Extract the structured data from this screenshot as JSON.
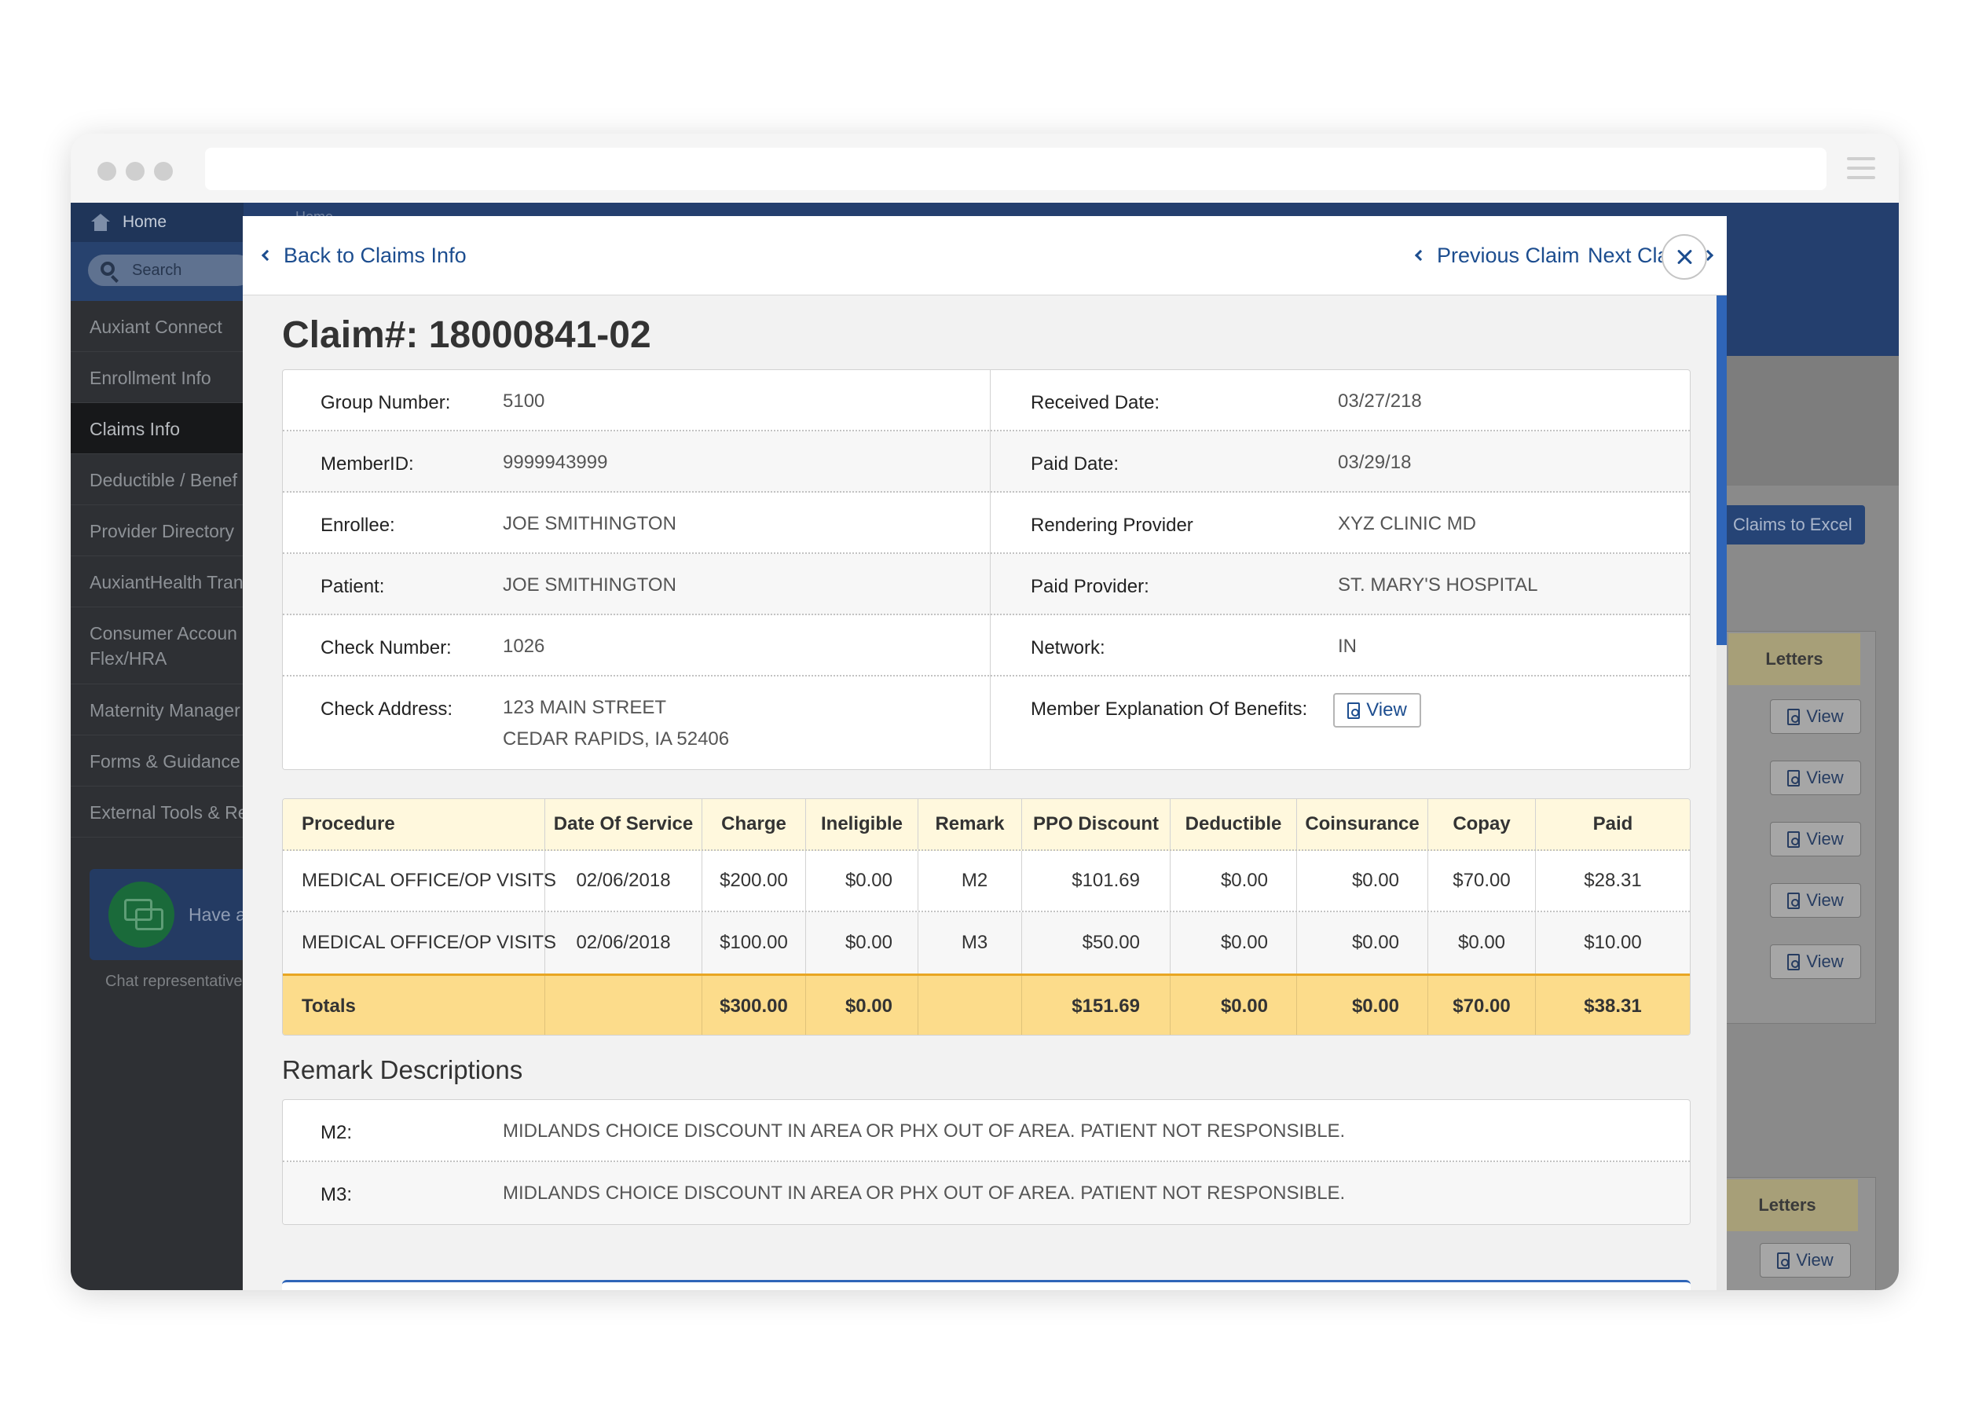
{
  "sidebar": {
    "home": "Home",
    "search_placeholder": "Search",
    "items": [
      {
        "label": "Auxiant Connect"
      },
      {
        "label": "Enrollment Info"
      },
      {
        "label": "Claims Info"
      },
      {
        "label": "Deductible / Benef"
      },
      {
        "label": "Provider Directory"
      },
      {
        "label": "AuxiantHealth Tran"
      },
      {
        "label": "Consumer Accoun"
      },
      {
        "label": "Maternity Manager"
      },
      {
        "label": "Forms & Guidance"
      },
      {
        "label": "External Tools & Re"
      }
    ],
    "consumer_sub": "Flex/HRA",
    "chat_title": "Have a",
    "chat_sub": "Chat representatives"
  },
  "background": {
    "breadcrumb": "Home",
    "export_button": "Claims to Excel",
    "letters_header": "Letters",
    "view_label": "View"
  },
  "modal": {
    "back_link": "Back to Claims Info",
    "previous_link": "Previous Claim",
    "next_link": "Next Claim",
    "claim_title": "Claim#: 18000841-02",
    "info": {
      "group_number_label": "Group Number:",
      "group_number": "5100",
      "member_id_label": "MemberID:",
      "member_id": "9999943999",
      "enrollee_label": "Enrollee:",
      "enrollee": "JOE SMITHINGTON",
      "patient_label": "Patient:",
      "patient": "JOE SMITHINGTON",
      "check_number_label": "Check Number:",
      "check_number": "1026",
      "check_address_label": "Check Address:",
      "check_address_line1": "123 MAIN STREET",
      "check_address_line2": "CEDAR RAPIDS, IA 52406",
      "received_date_label": "Received Date:",
      "received_date": "03/27/218",
      "paid_date_label": "Paid Date:",
      "paid_date": "03/29/18",
      "rendering_provider_label": "Rendering Provider",
      "rendering_provider": "XYZ CLINIC MD",
      "paid_provider_label": "Paid Provider:",
      "paid_provider": "ST. MARY'S HOSPITAL",
      "network_label": "Network:",
      "network": "IN",
      "eob_label": "Member Explanation Of Benefits:",
      "eob_button": "View"
    },
    "procedures": {
      "headers": [
        "Procedure",
        "Date Of Service",
        "Charge",
        "Ineligible",
        "Remark",
        "PPO Discount",
        "Deductible",
        "Coinsurance",
        "Copay",
        "Paid"
      ],
      "rows": [
        [
          "MEDICAL OFFICE/OP VISITS",
          "02/06/2018",
          "$200.00",
          "$0.00",
          "M2",
          "$101.69",
          "$0.00",
          "$0.00",
          "$70.00",
          "$28.31"
        ],
        [
          "MEDICAL OFFICE/OP VISITS",
          "02/06/2018",
          "$100.00",
          "$0.00",
          "M3",
          "$50.00",
          "$0.00",
          "$0.00",
          "$0.00",
          "$10.00"
        ]
      ],
      "totals": [
        "Totals",
        "",
        "$300.00",
        "$0.00",
        "",
        "$151.69",
        "$0.00",
        "$0.00",
        "$70.00",
        "$38.31"
      ]
    },
    "remarks_title": "Remark Descriptions",
    "remarks": [
      {
        "code": "M2:",
        "text": "MIDLANDS CHOICE DISCOUNT IN AREA OR PHX OUT OF AREA. PATIENT NOT RESPONSIBLE."
      },
      {
        "code": "M3:",
        "text": "MIDLANDS CHOICE DISCOUNT IN AREA OR PHX OUT OF AREA. PATIENT NOT RESPONSIBLE."
      }
    ]
  }
}
